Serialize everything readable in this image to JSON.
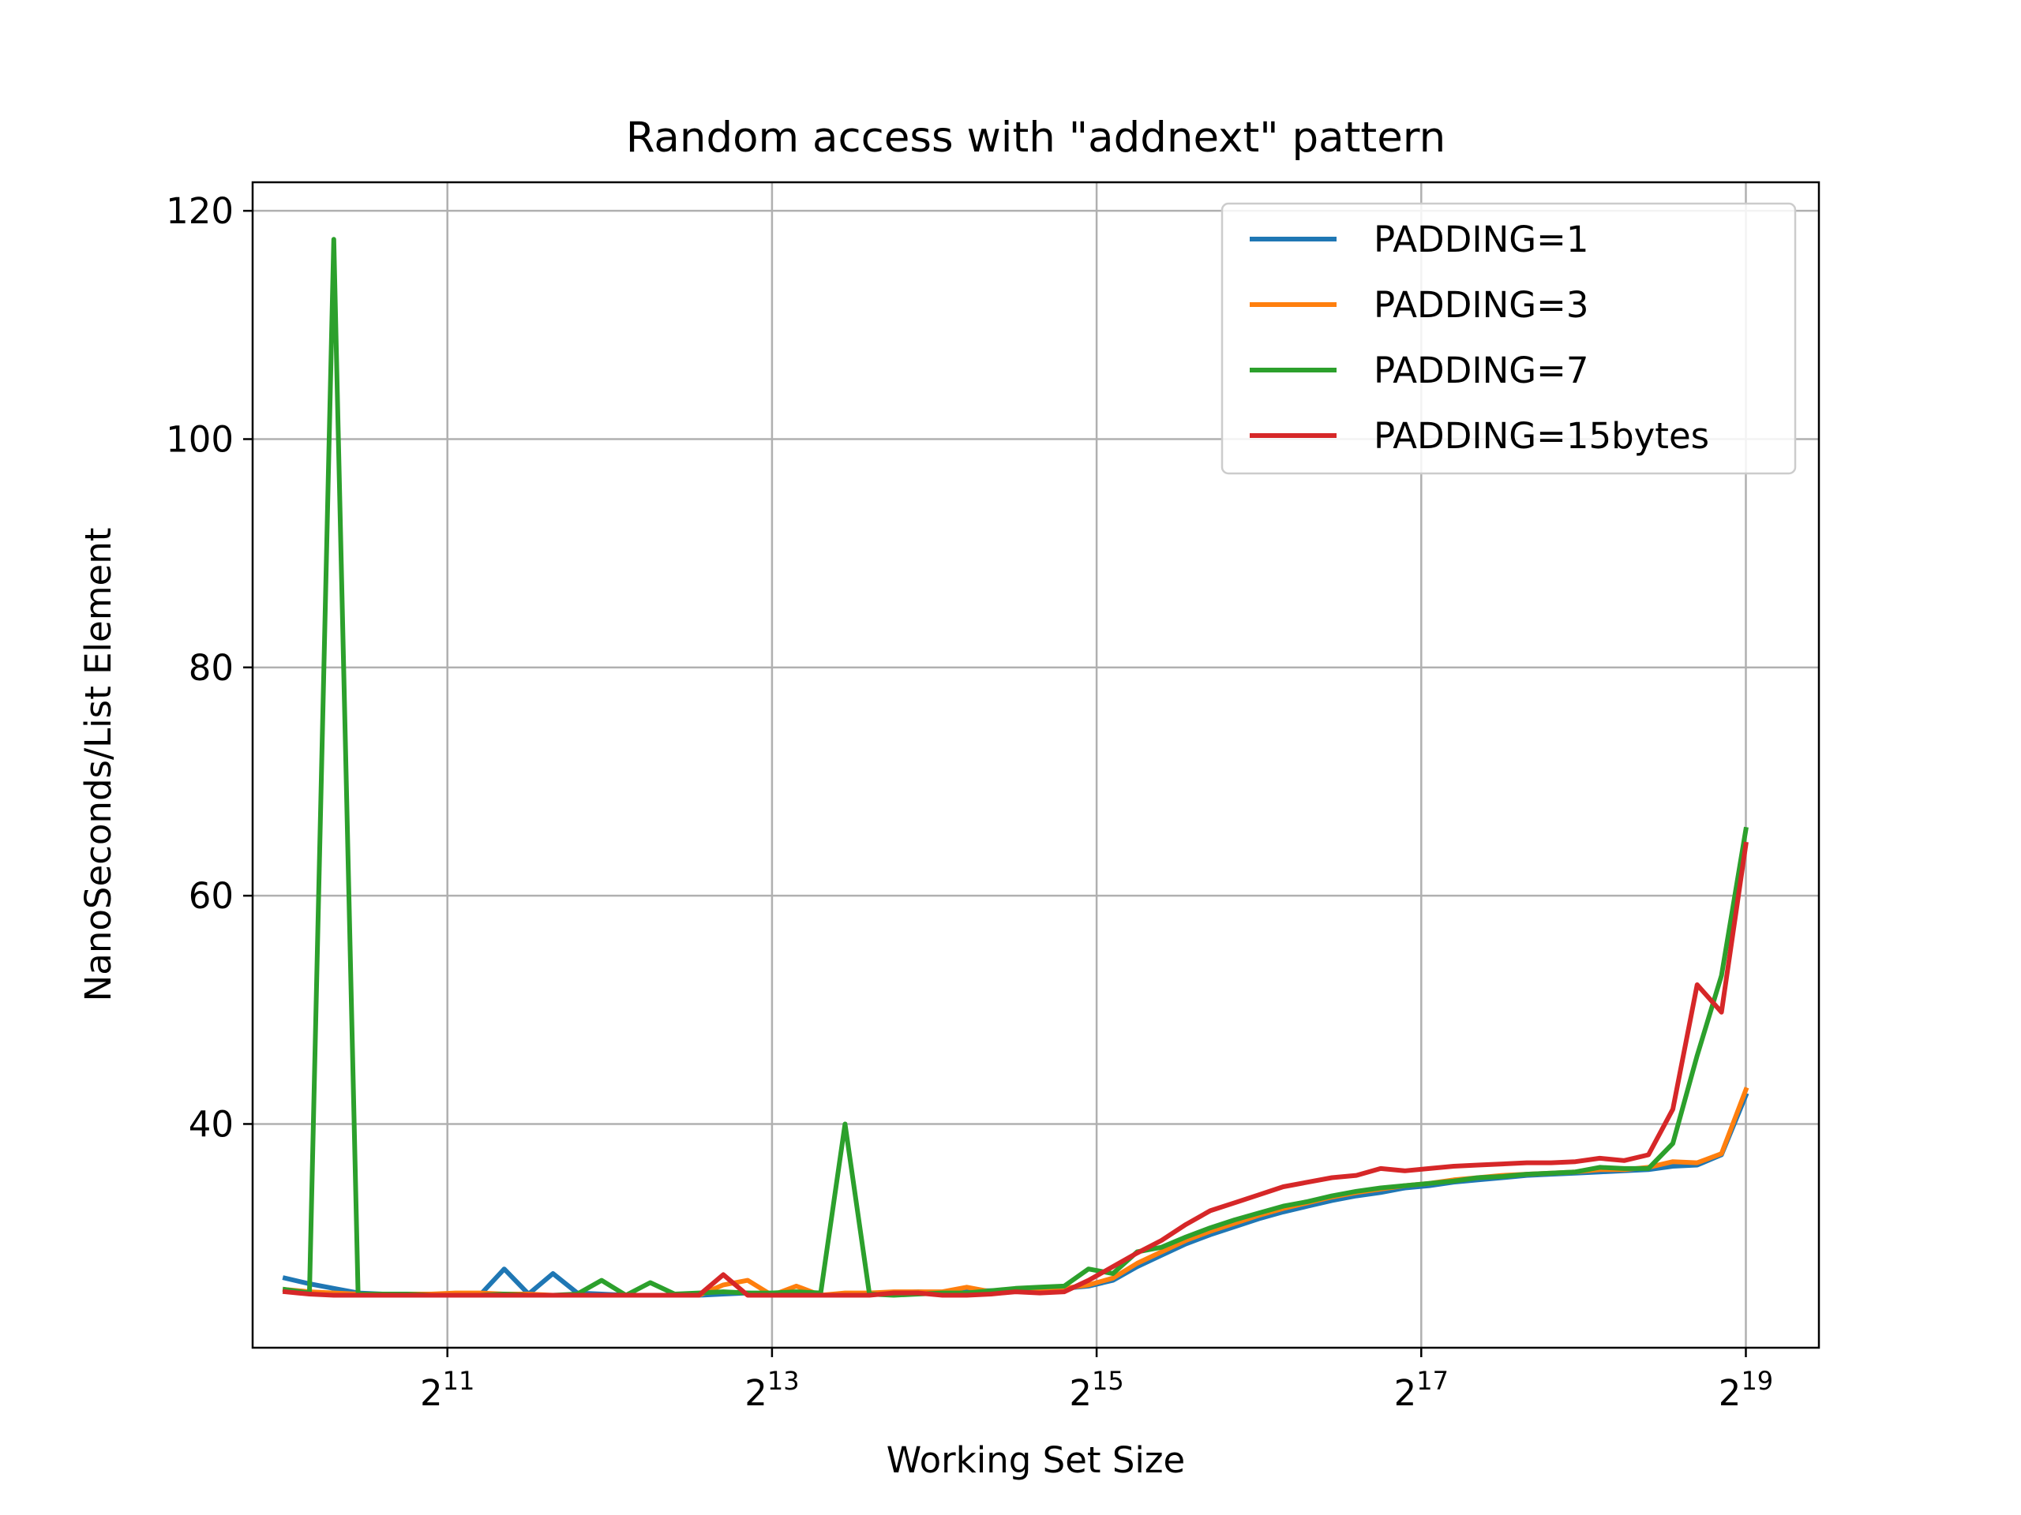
{
  "chart_data": {
    "type": "line",
    "title": "Random access with \"addnext\" pattern",
    "xlabel": "Working Set Size",
    "ylabel": "NanoSeconds/List Element",
    "x_scale": "log2",
    "xlim_exp": [
      9.8,
      19.45
    ],
    "ylim": [
      20.4,
      122.5
    ],
    "grid": true,
    "legend_position": "top-right",
    "x_ticks": [
      {
        "base": "2",
        "exp": "11",
        "value_exp": 11
      },
      {
        "base": "2",
        "exp": "13",
        "value_exp": 13
      },
      {
        "base": "2",
        "exp": "15",
        "value_exp": 15
      },
      {
        "base": "2",
        "exp": "17",
        "value_exp": 17
      },
      {
        "base": "2",
        "exp": "19",
        "value_exp": 19
      }
    ],
    "y_ticks": [
      40,
      60,
      80,
      100,
      120
    ],
    "x_exponents": [
      10.0,
      10.15,
      10.3,
      10.45,
      10.6,
      10.75,
      10.9,
      11.05,
      11.2,
      11.35,
      11.5,
      11.65,
      11.8,
      11.95,
      12.1,
      12.25,
      12.4,
      12.55,
      12.7,
      12.85,
      13.0,
      13.15,
      13.3,
      13.45,
      13.6,
      13.75,
      13.9,
      14.05,
      14.2,
      14.35,
      14.5,
      14.65,
      14.8,
      14.95,
      15.1,
      15.25,
      15.4,
      15.55,
      15.7,
      15.85,
      16.0,
      16.15,
      16.3,
      16.45,
      16.6,
      16.75,
      16.9,
      17.05,
      17.2,
      17.35,
      17.5,
      17.65,
      17.8,
      17.95,
      18.1,
      18.25,
      18.4,
      18.55,
      18.7,
      18.85,
      19.0
    ],
    "series": [
      {
        "name": "PADDING=1",
        "color": "#1f77b4",
        "values": [
          26.5,
          26.0,
          25.6,
          25.2,
          25.1,
          25.1,
          25.0,
          25.0,
          25.0,
          27.3,
          25.1,
          26.9,
          25.2,
          25.1,
          25.0,
          25.0,
          25.0,
          25.0,
          25.1,
          25.2,
          25.0,
          25.1,
          25.0,
          25.1,
          25.1,
          25.2,
          25.3,
          25.2,
          25.4,
          25.4,
          25.4,
          25.5,
          25.6,
          25.8,
          26.3,
          27.5,
          28.5,
          29.5,
          30.3,
          31.0,
          31.7,
          32.3,
          32.8,
          33.3,
          33.7,
          34.0,
          34.4,
          34.6,
          34.9,
          35.1,
          35.3,
          35.5,
          35.6,
          35.7,
          35.8,
          35.9,
          36.0,
          36.3,
          36.4,
          37.3,
          42.5
        ]
      },
      {
        "name": "PADDING=3",
        "color": "#ff7f0e",
        "values": [
          25.5,
          25.3,
          25.2,
          25.1,
          25.1,
          25.1,
          25.1,
          25.2,
          25.2,
          25.1,
          25.1,
          25.0,
          25.0,
          25.0,
          25.0,
          25.0,
          25.0,
          25.0,
          25.9,
          26.3,
          25.0,
          25.8,
          25.0,
          25.2,
          25.2,
          25.3,
          25.3,
          25.3,
          25.7,
          25.3,
          25.4,
          25.5,
          25.6,
          25.9,
          26.5,
          27.8,
          28.8,
          29.8,
          30.6,
          31.3,
          32.0,
          32.6,
          33.1,
          33.6,
          34.0,
          34.3,
          34.6,
          34.8,
          35.1,
          35.3,
          35.5,
          35.6,
          35.7,
          35.8,
          36.0,
          36.0,
          36.2,
          36.7,
          36.6,
          37.4,
          43.0
        ]
      },
      {
        "name": "PADDING=7",
        "color": "#2ca02c",
        "values": [
          25.5,
          25.2,
          117.5,
          25.1,
          25.1,
          25.1,
          25.0,
          25.0,
          25.0,
          25.1,
          25.0,
          25.0,
          25.1,
          26.3,
          25.0,
          26.1,
          25.1,
          25.2,
          25.3,
          25.2,
          25.2,
          25.3,
          25.2,
          40.0,
          25.1,
          25.0,
          25.1,
          25.2,
          25.2,
          25.4,
          25.6,
          25.7,
          25.8,
          27.3,
          26.9,
          28.8,
          29.2,
          30.1,
          30.9,
          31.6,
          32.2,
          32.8,
          33.2,
          33.7,
          34.1,
          34.4,
          34.6,
          34.8,
          35.0,
          35.3,
          35.4,
          35.6,
          35.7,
          35.8,
          36.2,
          36.1,
          36.1,
          38.3,
          46.0,
          53.0,
          65.8
        ]
      },
      {
        "name": "PADDING=15bytes",
        "color": "#d62728",
        "values": [
          25.3,
          25.1,
          25.0,
          25.0,
          25.0,
          25.0,
          25.0,
          25.0,
          25.0,
          25.0,
          25.0,
          25.0,
          25.0,
          25.0,
          25.0,
          25.0,
          25.0,
          25.0,
          26.8,
          25.0,
          25.0,
          25.0,
          25.0,
          25.0,
          25.0,
          25.2,
          25.2,
          25.0,
          25.0,
          25.1,
          25.3,
          25.2,
          25.3,
          26.3,
          27.5,
          28.7,
          29.8,
          31.2,
          32.4,
          33.1,
          33.8,
          34.5,
          34.9,
          35.3,
          35.5,
          36.1,
          35.9,
          36.1,
          36.3,
          36.4,
          36.5,
          36.6,
          36.6,
          36.7,
          37.0,
          36.8,
          37.3,
          41.3,
          52.2,
          49.8,
          64.5
        ]
      }
    ]
  }
}
